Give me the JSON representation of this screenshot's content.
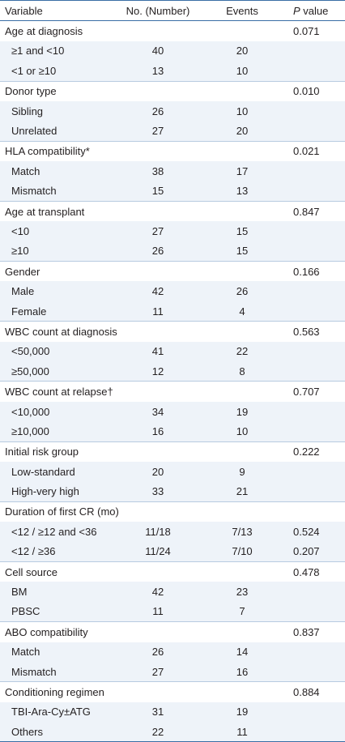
{
  "headers": {
    "variable": "Variable",
    "number": "No. (Number)",
    "events": "Events",
    "p_italic": "P",
    "p_rest": " value"
  },
  "rows": [
    {
      "type": "group",
      "label": "Age at diagnosis",
      "number": "",
      "events": "",
      "p": "0.071"
    },
    {
      "type": "sub",
      "label": "≥1 and <10",
      "number": "40",
      "events": "20",
      "p": ""
    },
    {
      "type": "sub",
      "label": "<1 or ≥10",
      "number": "13",
      "events": "10",
      "p": ""
    },
    {
      "type": "group",
      "label": "Donor type",
      "number": "",
      "events": "",
      "p": "0.010"
    },
    {
      "type": "sub",
      "label": "Sibling",
      "number": "26",
      "events": "10",
      "p": ""
    },
    {
      "type": "sub",
      "label": "Unrelated",
      "number": "27",
      "events": "20",
      "p": ""
    },
    {
      "type": "group",
      "label": "HLA compatibility*",
      "number": "",
      "events": "",
      "p": "0.021"
    },
    {
      "type": "sub",
      "label": "Match",
      "number": "38",
      "events": "17",
      "p": ""
    },
    {
      "type": "sub",
      "label": "Mismatch",
      "number": "15",
      "events": "13",
      "p": ""
    },
    {
      "type": "group",
      "label": "Age at transplant",
      "number": "",
      "events": "",
      "p": "0.847"
    },
    {
      "type": "sub",
      "label": "<10",
      "number": "27",
      "events": "15",
      "p": ""
    },
    {
      "type": "sub",
      "label": "≥10",
      "number": "26",
      "events": "15",
      "p": ""
    },
    {
      "type": "group",
      "label": "Gender",
      "number": "",
      "events": "",
      "p": "0.166"
    },
    {
      "type": "sub",
      "label": "Male",
      "number": "42",
      "events": "26",
      "p": ""
    },
    {
      "type": "sub",
      "label": "Female",
      "number": "11",
      "events": "4",
      "p": ""
    },
    {
      "type": "group",
      "label": "WBC count at diagnosis",
      "number": "",
      "events": "",
      "p": "0.563"
    },
    {
      "type": "sub",
      "label": "<50,000",
      "number": "41",
      "events": "22",
      "p": ""
    },
    {
      "type": "sub",
      "label": "≥50,000",
      "number": "12",
      "events": "8",
      "p": ""
    },
    {
      "type": "group",
      "label": "WBC count at relapse†",
      "number": "",
      "events": "",
      "p": "0.707"
    },
    {
      "type": "sub",
      "label": "<10,000",
      "number": "34",
      "events": "19",
      "p": ""
    },
    {
      "type": "sub",
      "label": "≥10,000",
      "number": "16",
      "events": "10",
      "p": ""
    },
    {
      "type": "group",
      "label": "Initial risk group",
      "number": "",
      "events": "",
      "p": "0.222"
    },
    {
      "type": "sub",
      "label": "Low-standard",
      "number": "20",
      "events": "9",
      "p": ""
    },
    {
      "type": "sub",
      "label": "High-very high",
      "number": "33",
      "events": "21",
      "p": ""
    },
    {
      "type": "group",
      "label": "Duration of first CR (mo)",
      "number": "",
      "events": "",
      "p": ""
    },
    {
      "type": "sub",
      "label": "<12 / ≥12 and <36",
      "number": "11/18",
      "events": "7/13",
      "p": "0.524"
    },
    {
      "type": "sub",
      "label": "<12 / ≥36",
      "number": "11/24",
      "events": "7/10",
      "p": "0.207"
    },
    {
      "type": "group",
      "label": "Cell source",
      "number": "",
      "events": "",
      "p": "0.478"
    },
    {
      "type": "sub",
      "label": "BM",
      "number": "42",
      "events": "23",
      "p": ""
    },
    {
      "type": "sub",
      "label": "PBSC",
      "number": "11",
      "events": "7",
      "p": ""
    },
    {
      "type": "group",
      "label": "ABO compatibility",
      "number": "",
      "events": "",
      "p": "0.837"
    },
    {
      "type": "sub",
      "label": "Match",
      "number": "26",
      "events": "14",
      "p": ""
    },
    {
      "type": "sub",
      "label": "Mismatch",
      "number": "27",
      "events": "16",
      "p": ""
    },
    {
      "type": "group",
      "label": "Conditioning regimen",
      "number": "",
      "events": "",
      "p": "0.884"
    },
    {
      "type": "sub",
      "label": "TBI-Ara-Cy±ATG",
      "number": "31",
      "events": "19",
      "p": ""
    },
    {
      "type": "sub",
      "label": "Others",
      "number": "22",
      "events": "11",
      "p": ""
    }
  ]
}
